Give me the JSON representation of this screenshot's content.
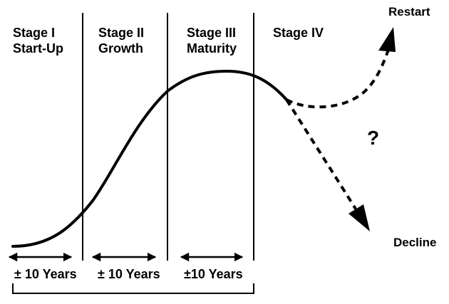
{
  "stages": [
    {
      "title": "Stage I",
      "subtitle": "Start-Up"
    },
    {
      "title": "Stage II",
      "subtitle": "Growth"
    },
    {
      "title": "Stage III",
      "subtitle": "Maturity"
    },
    {
      "title": "Stage IV",
      "subtitle": ""
    }
  ],
  "outcomes": {
    "restart": "Restart",
    "decline": "Decline",
    "uncertain": "?"
  },
  "durations": [
    "± 10 Years",
    "± 10 Years",
    "±10 Years"
  ],
  "colors": {
    "ink": "#000000",
    "background": "#ffffff"
  }
}
